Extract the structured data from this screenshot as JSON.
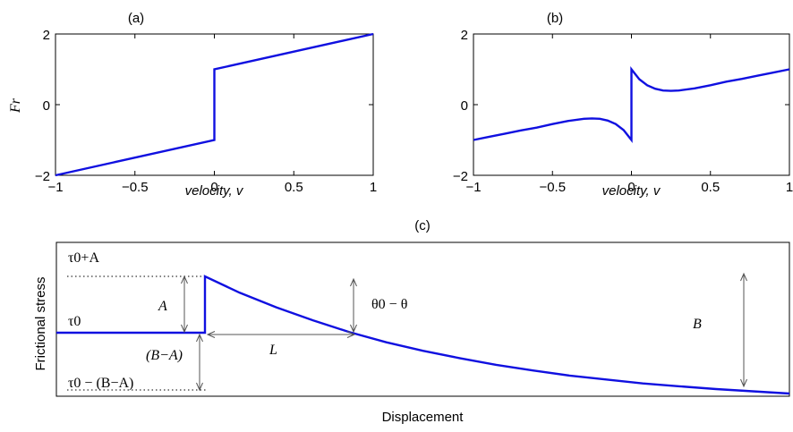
{
  "chart_data": [
    {
      "type": "line",
      "panel_label": "(a)",
      "xlabel": "velocity, v",
      "ylabel": "Fr",
      "xlim": [
        -1,
        1
      ],
      "ylim": [
        -2,
        2
      ],
      "xticks": [
        "−1",
        "−0.5",
        "0",
        "0.5",
        "1"
      ],
      "yticks": [
        "−2",
        "0",
        "2"
      ],
      "series": [
        {
          "x": [
            -1,
            0,
            0,
            1
          ],
          "y": [
            -2,
            -1,
            1,
            2
          ]
        }
      ]
    },
    {
      "type": "line",
      "panel_label": "(b)",
      "xlabel": "velocity, v",
      "ylabel": "",
      "xlim": [
        -1,
        1
      ],
      "ylim": [
        -2,
        2
      ],
      "xticks": [
        "−1",
        "−0.5",
        "0",
        "0.5",
        "1"
      ],
      "yticks": [
        "−2",
        "0",
        "2"
      ],
      "series": [
        {
          "x": [
            -1,
            -0.9,
            -0.8,
            -0.7,
            -0.6,
            -0.5,
            -0.4,
            -0.3,
            -0.25,
            -0.2,
            -0.15,
            -0.1,
            -0.05,
            0,
            0,
            0.05,
            0.1,
            0.15,
            0.2,
            0.25,
            0.3,
            0.4,
            0.5,
            0.6,
            0.7,
            0.8,
            0.9,
            1
          ],
          "y": [
            -1.0,
            -0.91,
            -0.82,
            -0.73,
            -0.65,
            -0.55,
            -0.46,
            -0.4,
            -0.39,
            -0.4,
            -0.45,
            -0.55,
            -0.72,
            -1.0,
            1.0,
            0.72,
            0.55,
            0.45,
            0.4,
            0.39,
            0.4,
            0.46,
            0.55,
            0.65,
            0.73,
            0.82,
            0.91,
            1.0
          ]
        }
      ]
    },
    {
      "type": "line",
      "panel_label": "(c)",
      "xlabel": "Displacement",
      "ylabel": "Frictional stress",
      "xlim": [
        0,
        1
      ],
      "ylim": [
        -1,
        1
      ],
      "series": [
        {
          "x": [
            0,
            0.2,
            0.2,
            0.25,
            0.3,
            0.35,
            0.4,
            0.45,
            0.5,
            0.55,
            0.6,
            0.65,
            0.7,
            0.75,
            0.8,
            0.85,
            0.9,
            0.95,
            1
          ],
          "y": [
            0,
            0,
            1,
            0.71,
            0.45,
            0.22,
            0.01,
            -0.17,
            -0.32,
            -0.45,
            -0.57,
            -0.67,
            -0.76,
            -0.83,
            -0.9,
            -0.95,
            -1.0,
            -1.04,
            -1.08
          ]
        }
      ],
      "annotations": {
        "tau_plus_a": "τ0+A",
        "tau0": "τ0",
        "tau_minus": "τ0 − (B−A)",
        "a": "A",
        "b_minus_a": "(B−A)",
        "l": "L",
        "theta": "θ0 − θ",
        "b": "B"
      }
    }
  ]
}
